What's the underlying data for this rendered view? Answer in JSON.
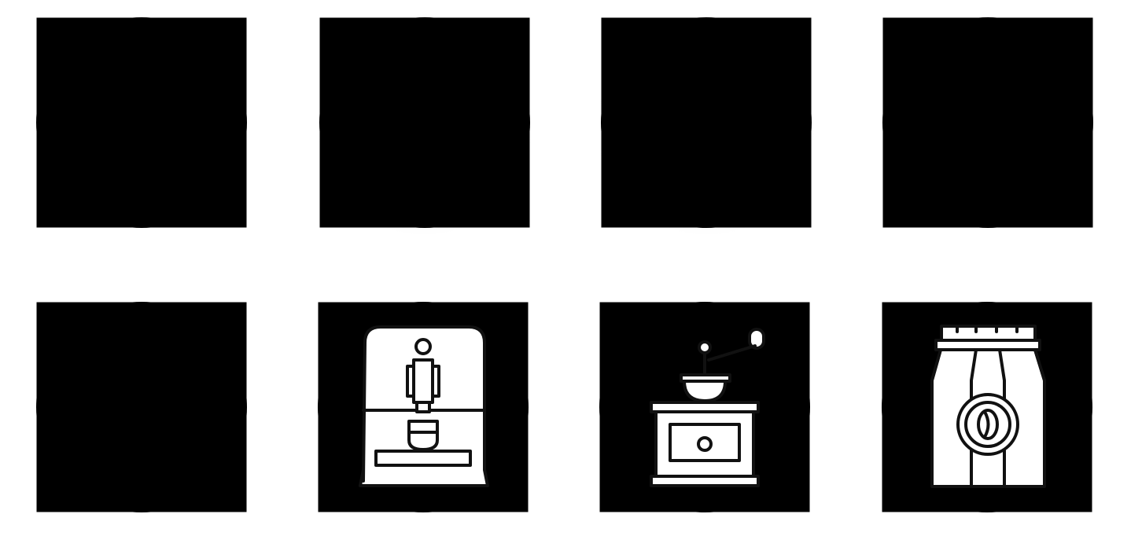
{
  "grid": {
    "line_color": "#dcdcdc"
  },
  "tiles": [
    {
      "id": "t1",
      "content": "empty-grid",
      "shadow": false
    },
    {
      "id": "t2",
      "content": "shadow",
      "shadow": true
    },
    {
      "id": "t3",
      "content": "shadow",
      "shadow": true
    },
    {
      "id": "t4",
      "content": "shadow",
      "shadow": true
    },
    {
      "id": "t5",
      "content": "empty-grid",
      "shadow": false
    },
    {
      "id": "t6",
      "content": "espresso-machine-icon",
      "shadow": false
    },
    {
      "id": "t7",
      "content": "coffee-grinder-icon",
      "shadow": false
    },
    {
      "id": "t8",
      "content": "coffee-bag-icon",
      "shadow": false
    }
  ],
  "icon_stroke_color": "#111111"
}
